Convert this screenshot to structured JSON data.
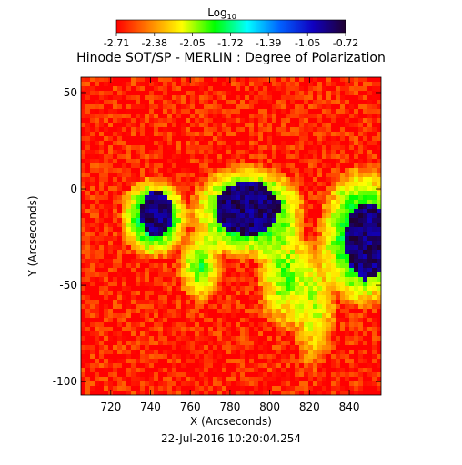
{
  "chart_data": {
    "type": "heatmap",
    "title": "Hinode SOT/SP - MERLIN : Degree of Polarization",
    "subtitle": "22-Jul-2016 10:20:04.254",
    "xlabel": "X (Arcseconds)",
    "ylabel": "Y (Arcseconds)",
    "xlim": [
      705,
      856
    ],
    "ylim": [
      -107,
      58
    ],
    "x_ticks": [
      720,
      740,
      760,
      780,
      800,
      820,
      840
    ],
    "y_ticks": [
      50,
      0,
      -50,
      -100
    ],
    "grid": false,
    "colorbar": {
      "label": "Log",
      "label_subscript": "10",
      "placement": "top",
      "range": [
        -2.71,
        -0.72
      ],
      "ticks": [
        "-2.71",
        "-2.38",
        "-2.05",
        "-1.72",
        "-1.39",
        "-1.05",
        "-0.72"
      ],
      "colormap": [
        "#ff0000",
        "#ff8000",
        "#ffff00",
        "#00ff00",
        "#00ffff",
        "#0060ff",
        "#1000c0",
        "#200030"
      ]
    },
    "features": [
      {
        "feature": "umbra",
        "x": 743,
        "y": -13,
        "rx": 8,
        "ry": 12,
        "value": -0.85
      },
      {
        "feature": "penumbra",
        "x": 742,
        "y": -15,
        "rx": 18,
        "ry": 22,
        "value": -1.5
      },
      {
        "feature": "umbra",
        "x": 789,
        "y": -10,
        "rx": 16,
        "ry": 14,
        "value": -0.85
      },
      {
        "feature": "penumbra",
        "x": 789,
        "y": -12,
        "rx": 30,
        "ry": 26,
        "value": -1.5
      },
      {
        "feature": "umbra",
        "x": 849,
        "y": -27,
        "rx": 11,
        "ry": 20,
        "value": -0.85
      },
      {
        "feature": "penumbra",
        "x": 846,
        "y": -25,
        "rx": 22,
        "ry": 38,
        "value": -1.5
      },
      {
        "feature": "plage",
        "x": 765,
        "y": -40,
        "rx": 12,
        "ry": 20,
        "value": -1.85
      },
      {
        "feature": "plage",
        "x": 808,
        "y": -45,
        "rx": 15,
        "ry": 30,
        "value": -1.9
      },
      {
        "feature": "plage",
        "x": 822,
        "y": -60,
        "rx": 12,
        "ry": 35,
        "value": -2.0
      }
    ]
  }
}
